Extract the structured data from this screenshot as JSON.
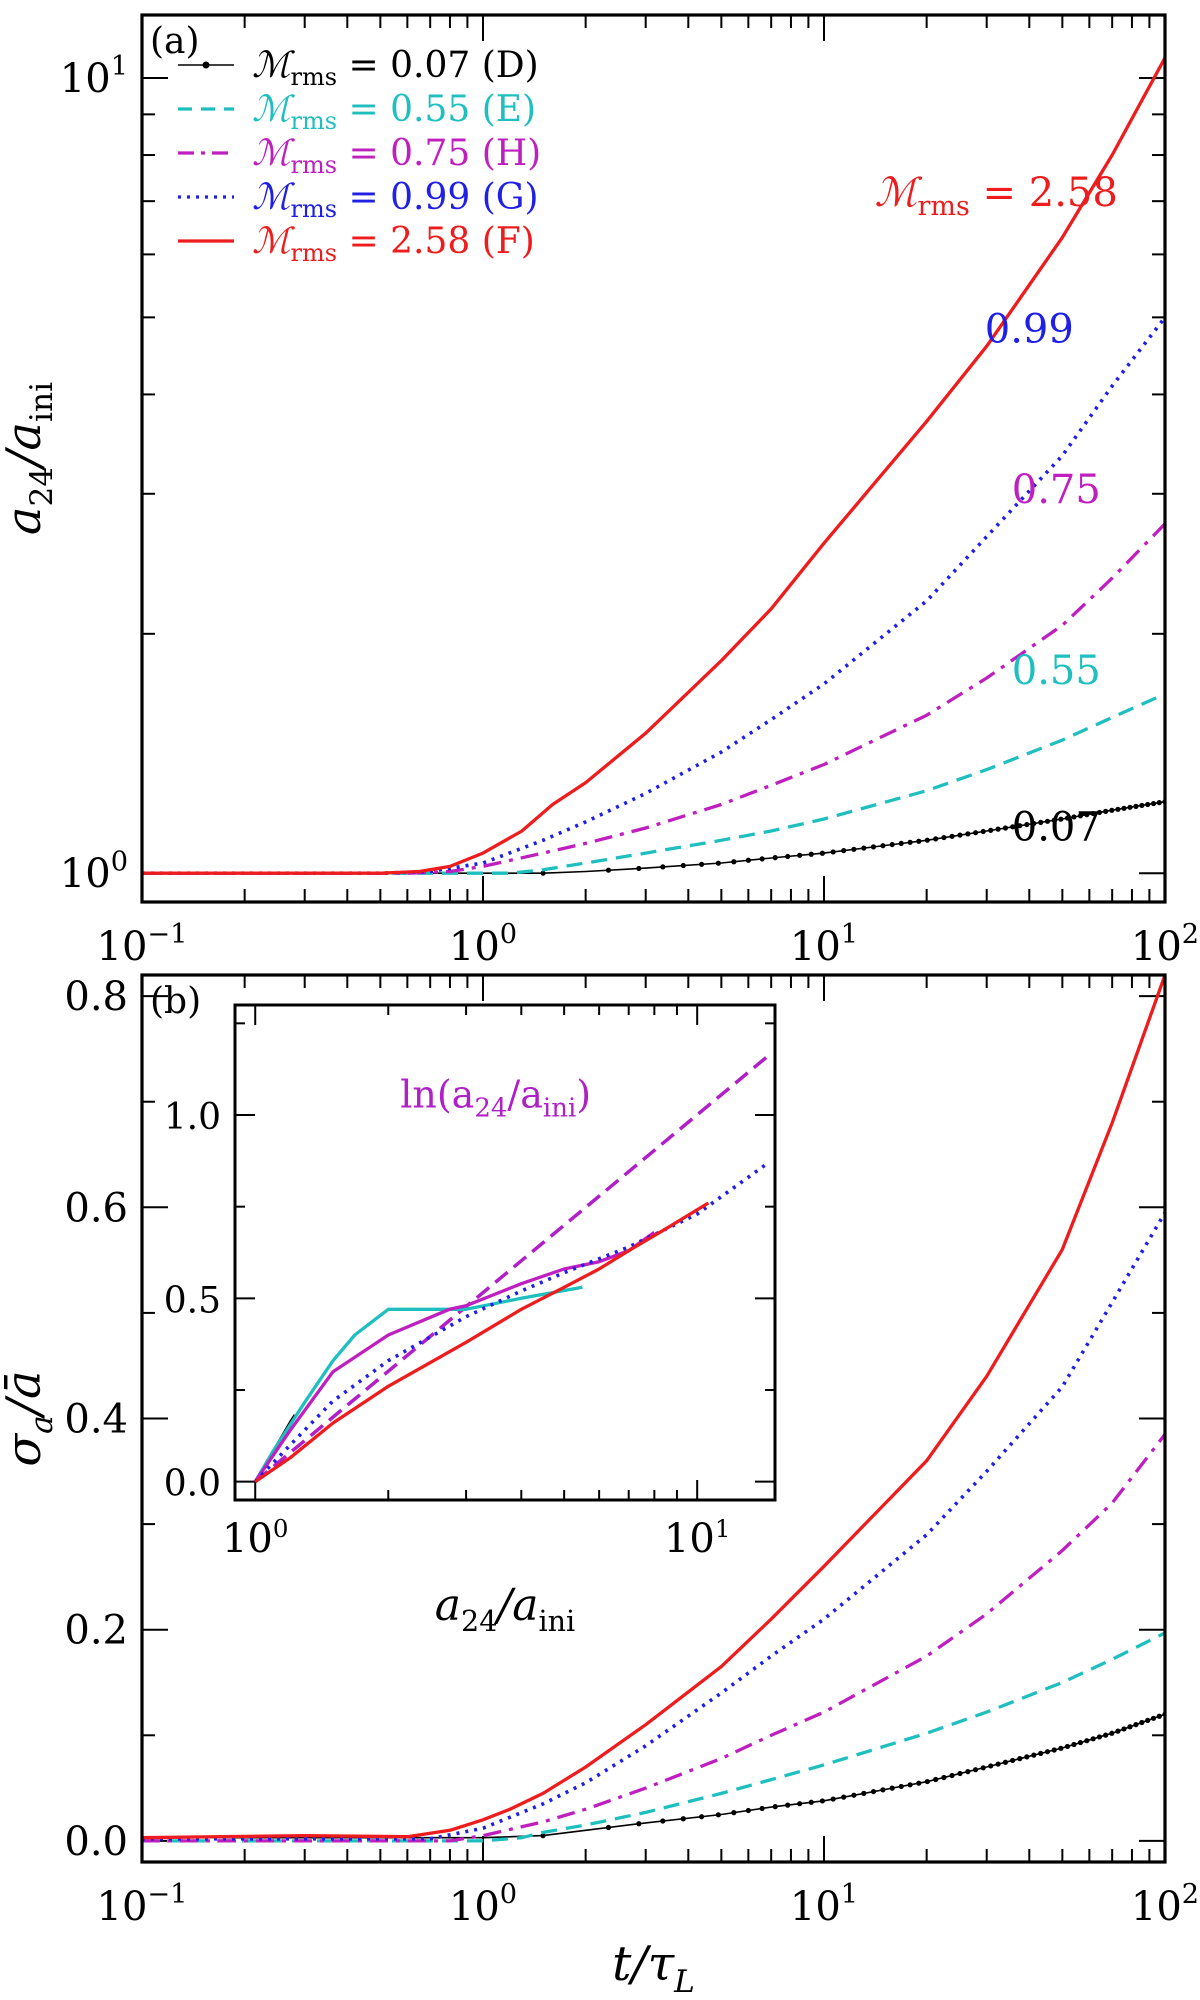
{
  "figure": {
    "colors": {
      "D": "#000000",
      "E": "#1fbfbf",
      "H": "#bf1fbf",
      "G": "#1f1fe6",
      "F": "#ee1c1c",
      "inset_ref": "#b01fc8"
    }
  },
  "chart_data": [
    {
      "id": "a",
      "type": "line",
      "panel_label": "(a)",
      "xlabel": "t/τ_L",
      "ylabel": "a24/a_ini",
      "xscale": "log",
      "yscale": "log",
      "xlim": [
        0.1,
        100
      ],
      "ylim": [
        0.92,
        12
      ],
      "xtick_labels": [
        {
          "value": 0.1,
          "base": "10",
          "exp": "−1"
        },
        {
          "value": 1,
          "base": "10",
          "exp": "0"
        },
        {
          "value": 10,
          "base": "10",
          "exp": "1"
        },
        {
          "value": 100,
          "base": "10",
          "exp": "2"
        }
      ],
      "ytick_labels": [
        {
          "value": 1,
          "base": "10",
          "exp": "0"
        },
        {
          "value": 10,
          "base": "10",
          "exp": "1"
        }
      ],
      "legend": [
        {
          "key": "D",
          "label": "ℳrms = 0.07 (D)",
          "style": "solid-dot"
        },
        {
          "key": "E",
          "label": "ℳrms = 0.55 (E)",
          "style": "dashed"
        },
        {
          "key": "H",
          "label": "ℳrms = 0.75 (H)",
          "style": "dashdot"
        },
        {
          "key": "G",
          "label": "ℳrms = 0.99 (G)",
          "style": "dotted"
        },
        {
          "key": "F",
          "label": "ℳrms = 2.58 (F)",
          "style": "solid"
        }
      ],
      "annotations": [
        {
          "key": "F",
          "text": "ℳrms = 2.58",
          "x": 32,
          "y": 6.9
        },
        {
          "key": "G",
          "text": "0.99",
          "x": 40,
          "y": 4.65
        },
        {
          "key": "H",
          "text": "0.75",
          "x": 48,
          "y": 2.92
        },
        {
          "key": "E",
          "text": "0.55",
          "x": 48,
          "y": 1.73
        },
        {
          "key": "D",
          "text": "0.07",
          "x": 48,
          "y": 1.1
        }
      ],
      "series": [
        {
          "key": "D",
          "name": "ℳrms = 0.07 (D)",
          "x": [
            0.1,
            1,
            1.5,
            2,
            3,
            5,
            7,
            10,
            20,
            30,
            50,
            70,
            100
          ],
          "y": [
            1,
            1,
            1,
            1.005,
            1.015,
            1.03,
            1.045,
            1.06,
            1.1,
            1.13,
            1.17,
            1.2,
            1.23
          ]
        },
        {
          "key": "E",
          "name": "ℳrms = 0.55 (E)",
          "x": [
            0.1,
            0.8,
            1.2,
            1.5,
            2,
            3,
            5,
            7,
            10,
            20,
            30,
            50,
            70,
            100
          ],
          "y": [
            1,
            1,
            1,
            1.01,
            1.03,
            1.06,
            1.1,
            1.13,
            1.17,
            1.27,
            1.35,
            1.47,
            1.57,
            1.68
          ]
        },
        {
          "key": "H",
          "name": "ℳrms = 0.75 (H)",
          "x": [
            0.1,
            0.6,
            0.8,
            1,
            1.5,
            2,
            3,
            5,
            7,
            10,
            20,
            30,
            50,
            70,
            100
          ],
          "y": [
            1,
            1,
            1.005,
            1.02,
            1.06,
            1.09,
            1.14,
            1.22,
            1.29,
            1.37,
            1.58,
            1.76,
            2.05,
            2.35,
            2.75
          ]
        },
        {
          "key": "G",
          "name": "ℳrms = 0.99 (G)",
          "x": [
            0.1,
            0.5,
            0.7,
            1,
            1.5,
            2,
            3,
            5,
            7,
            10,
            20,
            30,
            50,
            70,
            100
          ],
          "y": [
            1,
            1,
            1.005,
            1.03,
            1.1,
            1.16,
            1.26,
            1.42,
            1.56,
            1.73,
            2.2,
            2.65,
            3.35,
            4.1,
            5
          ]
        },
        {
          "key": "F",
          "name": "ℳrms = 2.58 (F)",
          "x": [
            0.1,
            0.5,
            0.65,
            0.8,
            1,
            1.3,
            1.6,
            2,
            3,
            5,
            7,
            10,
            20,
            30,
            50,
            70,
            100
          ],
          "y": [
            1,
            1,
            1.005,
            1.02,
            1.06,
            1.13,
            1.22,
            1.3,
            1.5,
            1.85,
            2.15,
            2.6,
            3.7,
            4.6,
            6.3,
            8,
            10.6
          ]
        }
      ]
    },
    {
      "id": "b",
      "type": "line",
      "panel_label": "(b)",
      "xlabel": "t/τ_L",
      "ylabel": "σa/ā",
      "xscale": "log",
      "yscale": "linear",
      "xlim": [
        0.1,
        100
      ],
      "ylim": [
        -0.02,
        0.82
      ],
      "xtick_labels": [
        {
          "value": 0.1,
          "base": "10",
          "exp": "−1"
        },
        {
          "value": 1,
          "base": "10",
          "exp": "0"
        },
        {
          "value": 10,
          "base": "10",
          "exp": "1"
        },
        {
          "value": 100,
          "base": "10",
          "exp": "2"
        }
      ],
      "ytick_labels": [
        "0.0",
        "0.2",
        "0.4",
        "0.6",
        "0.8"
      ],
      "series": [
        {
          "key": "D",
          "name": "ℳrms = 0.07 (D)",
          "x": [
            0.1,
            1,
            1.5,
            2,
            3,
            5,
            7,
            10,
            20,
            30,
            50,
            70,
            100
          ],
          "y": [
            0.003,
            0.003,
            0.005,
            0.01,
            0.017,
            0.025,
            0.032,
            0.038,
            0.056,
            0.07,
            0.088,
            0.102,
            0.12
          ]
        },
        {
          "key": "E",
          "name": "ℳrms = 0.55 (E)",
          "x": [
            0.1,
            1,
            1.3,
            1.5,
            2,
            3,
            5,
            7,
            10,
            20,
            30,
            50,
            70,
            100
          ],
          "y": [
            0,
            0,
            0.003,
            0.008,
            0.015,
            0.027,
            0.045,
            0.058,
            0.072,
            0.102,
            0.122,
            0.15,
            0.172,
            0.197
          ]
        },
        {
          "key": "H",
          "name": "ℳrms = 0.75 (H)",
          "x": [
            0.1,
            0.8,
            1,
            1.5,
            2,
            3,
            5,
            7,
            10,
            20,
            30,
            50,
            70,
            100
          ],
          "y": [
            0,
            0,
            0.005,
            0.018,
            0.03,
            0.05,
            0.078,
            0.1,
            0.122,
            0.175,
            0.215,
            0.275,
            0.32,
            0.385
          ]
        },
        {
          "key": "G",
          "name": "ℳrms = 0.99 (G)",
          "x": [
            0.1,
            0.7,
            1,
            1.5,
            2,
            3,
            5,
            7,
            10,
            20,
            30,
            50,
            70,
            100
          ],
          "y": [
            0.002,
            0.002,
            0.012,
            0.035,
            0.055,
            0.09,
            0.14,
            0.175,
            0.21,
            0.29,
            0.35,
            0.43,
            0.51,
            0.595
          ]
        },
        {
          "key": "F",
          "name": "ℳrms = 2.58 (F)",
          "x": [
            0.1,
            0.3,
            0.6,
            0.8,
            1,
            1.2,
            1.5,
            2,
            3,
            5,
            7,
            10,
            20,
            30,
            50,
            70,
            100
          ],
          "y": [
            0.003,
            0.005,
            0.004,
            0.01,
            0.02,
            0.03,
            0.045,
            0.07,
            0.11,
            0.165,
            0.21,
            0.26,
            0.36,
            0.44,
            0.56,
            0.68,
            0.82
          ]
        }
      ]
    },
    {
      "id": "b-inset",
      "type": "line",
      "panel_label": "",
      "xlabel": "a24/a_ini",
      "ylabel": "",
      "xscale": "log",
      "yscale": "linear",
      "xlim": [
        0.9,
        15
      ],
      "ylim": [
        -0.05,
        1.3
      ],
      "xtick_labels": [
        {
          "value": 1,
          "base": "10",
          "exp": "0"
        },
        {
          "value": 10,
          "base": "10",
          "exp": "1"
        }
      ],
      "ytick_labels": [
        "0.0",
        "0.5",
        "1.0"
      ],
      "reference": {
        "label": "ln(a24/a_ini)",
        "text_x": 3.5,
        "text_y": 1.02,
        "x": [
          1,
          14.5
        ],
        "y": [
          0,
          1.162
        ]
      },
      "series": [
        {
          "key": "D",
          "name": "D",
          "x": [
            1,
            1.06,
            1.12,
            1.2,
            1.23
          ],
          "y": [
            0,
            0.05,
            0.1,
            0.162,
            0.182
          ]
        },
        {
          "key": "E",
          "name": "E",
          "x": [
            1,
            1.1,
            1.3,
            1.5,
            1.68,
            2,
            3,
            4,
            5.5
          ],
          "y": [
            0,
            0.085,
            0.22,
            0.33,
            0.4,
            0.47,
            0.47,
            0.5,
            0.53
          ]
        },
        {
          "key": "H",
          "name": "H",
          "x": [
            1,
            1.2,
            1.5,
            2,
            2.75,
            3,
            4,
            5,
            6,
            7,
            8
          ],
          "y": [
            0,
            0.14,
            0.3,
            0.4,
            0.47,
            0.48,
            0.54,
            0.58,
            0.6,
            0.63,
            0.68
          ]
        },
        {
          "key": "G",
          "name": "G",
          "x": [
            1,
            1.2,
            1.5,
            2,
            3,
            4,
            5,
            7,
            10,
            14.5
          ],
          "y": [
            0,
            0.1,
            0.22,
            0.33,
            0.45,
            0.52,
            0.57,
            0.64,
            0.73,
            0.87
          ]
        },
        {
          "key": "F",
          "name": "F",
          "x": [
            1,
            1.2,
            1.5,
            2,
            3,
            4,
            5,
            6,
            7,
            8.5,
            10.6
          ],
          "y": [
            0,
            0.065,
            0.16,
            0.26,
            0.38,
            0.47,
            0.53,
            0.58,
            0.63,
            0.69,
            0.76
          ]
        }
      ]
    }
  ]
}
